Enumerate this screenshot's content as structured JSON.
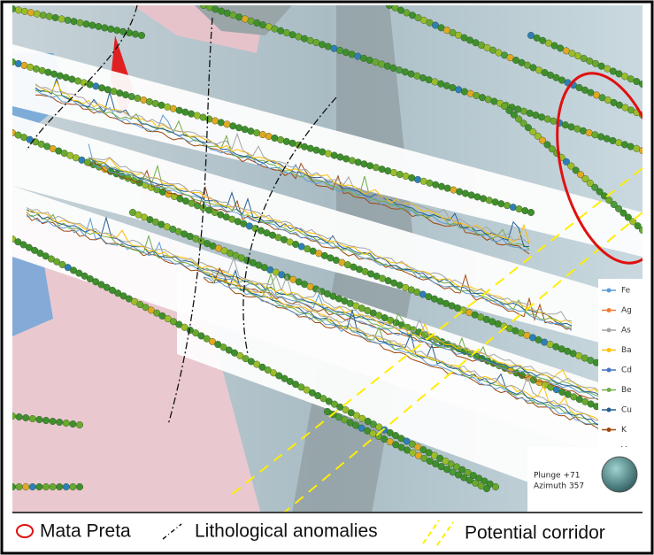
{
  "legend": {
    "elements": [
      {
        "name": "Fe",
        "color": "#5b9bd5"
      },
      {
        "name": "Ag",
        "color": "#ed7d31"
      },
      {
        "name": "As",
        "color": "#a5a5a5"
      },
      {
        "name": "Ba",
        "color": "#ffc000"
      },
      {
        "name": "Cd",
        "color": "#4472c4"
      },
      {
        "name": "Be",
        "color": "#70ad47"
      },
      {
        "name": "Cu",
        "color": "#255e91"
      },
      {
        "name": "K",
        "color": "#9e480e"
      },
      {
        "name": "V",
        "color": "#636363"
      }
    ]
  },
  "compass": {
    "plunge": "Plunge +71",
    "azimuth": "Azimuth 357"
  },
  "key": {
    "items": [
      "Mata Preta",
      "Lithological anomalies",
      "Potential corridor"
    ]
  }
}
